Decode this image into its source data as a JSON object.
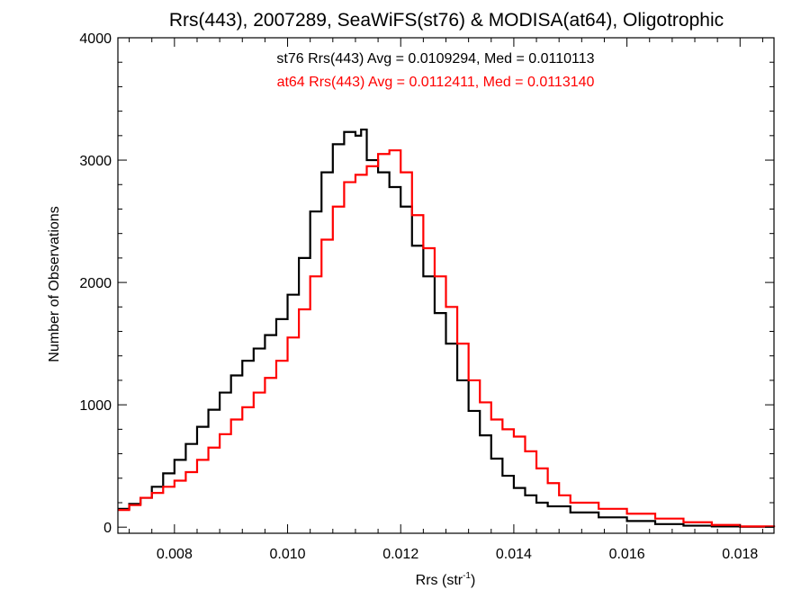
{
  "chart_data": {
    "type": "line",
    "step": true,
    "title": "Rrs(443), 2007289, SeaWiFS(st76) & MODISA(at64), Oligotrophic",
    "xlabel_main": "Rrs (str",
    "xlabel_sup": "-1",
    "xlabel_close": ")",
    "ylabel": "Number of Observations",
    "xlim": [
      0.007,
      0.0186
    ],
    "ylim": [
      -50,
      4000
    ],
    "xticks": [
      0.008,
      0.01,
      0.012,
      0.014,
      0.016,
      0.018
    ],
    "xtick_labels": [
      "0.008",
      "0.010",
      "0.012",
      "0.014",
      "0.016",
      "0.018"
    ],
    "yticks": [
      0,
      1000,
      2000,
      3000,
      4000
    ],
    "ytick_labels": [
      "0",
      "1000",
      "2000",
      "3000",
      "4000"
    ],
    "grid": false,
    "annotations": [
      {
        "text": "st76 Rrs(443) Avg = 0.0109294, Med = 0.0110113",
        "color": "#000000"
      },
      {
        "text": "at64 Rrs(443) Avg = 0.0112411, Med = 0.0113140",
        "color": "#ff0000"
      }
    ],
    "series": [
      {
        "color": "#000000",
        "x": [
          0.007,
          0.0072,
          0.0074,
          0.0076,
          0.0078,
          0.008,
          0.0082,
          0.0084,
          0.0086,
          0.0088,
          0.009,
          0.0092,
          0.0094,
          0.0096,
          0.0098,
          0.01,
          0.0102,
          0.0104,
          0.0106,
          0.0108,
          0.011,
          0.0112,
          0.0113,
          0.0114,
          0.0116,
          0.0118,
          0.012,
          0.0122,
          0.0124,
          0.0126,
          0.0128,
          0.013,
          0.0132,
          0.0134,
          0.0136,
          0.0138,
          0.014,
          0.0142,
          0.0144,
          0.0146,
          0.015,
          0.0155,
          0.016,
          0.0165,
          0.017,
          0.0175,
          0.018,
          0.0186
        ],
        "y": [
          150,
          190,
          240,
          330,
          440,
          550,
          680,
          820,
          960,
          1100,
          1240,
          1360,
          1460,
          1570,
          1700,
          1900,
          2200,
          2580,
          2900,
          3130,
          3230,
          3200,
          3250,
          3000,
          2900,
          2780,
          2620,
          2300,
          2050,
          1750,
          1500,
          1200,
          950,
          750,
          560,
          420,
          320,
          260,
          200,
          170,
          120,
          80,
          50,
          25,
          12,
          6,
          3,
          0
        ]
      },
      {
        "color": "#ff0000",
        "x": [
          0.007,
          0.0072,
          0.0074,
          0.0076,
          0.0078,
          0.008,
          0.0082,
          0.0084,
          0.0086,
          0.0088,
          0.009,
          0.0092,
          0.0094,
          0.0096,
          0.0098,
          0.01,
          0.0102,
          0.0104,
          0.0106,
          0.0108,
          0.011,
          0.0112,
          0.0114,
          0.0116,
          0.0118,
          0.012,
          0.0122,
          0.0124,
          0.0126,
          0.0128,
          0.013,
          0.0132,
          0.0134,
          0.0136,
          0.0138,
          0.014,
          0.0142,
          0.0144,
          0.0146,
          0.0148,
          0.015,
          0.0155,
          0.016,
          0.0165,
          0.017,
          0.0175,
          0.018,
          0.0186
        ],
        "y": [
          140,
          180,
          240,
          280,
          330,
          380,
          450,
          550,
          650,
          760,
          880,
          980,
          1100,
          1220,
          1360,
          1550,
          1780,
          2050,
          2350,
          2620,
          2820,
          2880,
          2950,
          3050,
          3080,
          2900,
          2550,
          2280,
          2050,
          1800,
          1500,
          1200,
          1020,
          880,
          800,
          740,
          620,
          480,
          360,
          260,
          200,
          150,
          110,
          70,
          40,
          18,
          6,
          0
        ]
      }
    ]
  }
}
